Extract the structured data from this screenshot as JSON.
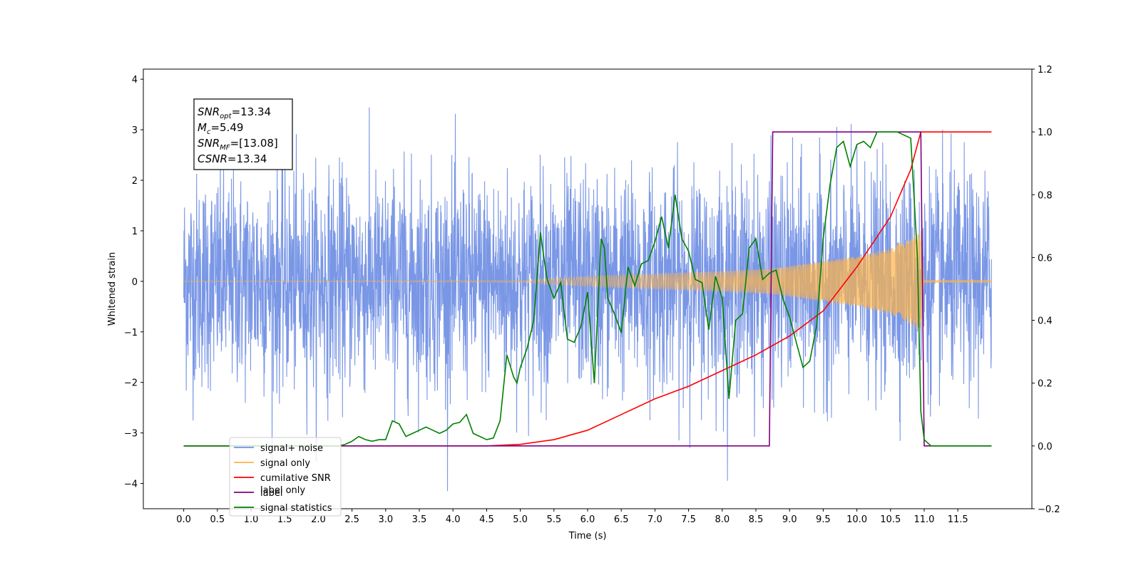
{
  "chart_data": {
    "type": "line",
    "xlabel": "Time (s)",
    "ylabel": "Whitened strain",
    "xlim": [
      -0.6,
      12.6
    ],
    "ylim": [
      -4.5,
      4.2
    ],
    "y2lim": [
      -0.2,
      1.2
    ],
    "x_ticks": [
      "0.0",
      "0.5",
      "1.0",
      "1.5",
      "2.0",
      "2.5",
      "3.0",
      "3.5",
      "4.0",
      "4.5",
      "5.0",
      "5.5",
      "6.0",
      "6.5",
      "7.0",
      "7.5",
      "8.0",
      "8.5",
      "9.0",
      "9.5",
      "10.0",
      "10.5",
      "11.0",
      "11.5"
    ],
    "y_ticks": [
      "4",
      "3",
      "2",
      "1",
      "0",
      "−1",
      "−2",
      "−3",
      "−4"
    ],
    "y2_ticks": [
      "1.2",
      "1.0",
      "0.8",
      "0.6",
      "0.4",
      "0.2",
      "0.0",
      "−0.2"
    ],
    "annotation_lines": [
      {
        "main": "SNR",
        "sub": "opt",
        "rest": "=13.34"
      },
      {
        "main": "M",
        "sub": "c",
        "rest": "=5.49"
      },
      {
        "main": "SNR",
        "sub": "MF",
        "rest": "=[13.08]"
      },
      {
        "main": "CSNR",
        "sub": "",
        "rest": "=13.34"
      }
    ],
    "legend": [
      {
        "label": "signal+ noise",
        "color": "#7391e5"
      },
      {
        "label": "signal only",
        "color": "#ffb347"
      },
      {
        "label": "cumilative SNR",
        "color": "#ff0000"
      },
      {
        "label": "label",
        "color": "#800080"
      },
      {
        "label": "signal statistics",
        "color": "#008000"
      }
    ],
    "legend_occluded_text": "label only",
    "legend_position": "lower-left",
    "series": [
      {
        "name": "signal+ noise",
        "axis": "left",
        "color": "#7391e5",
        "description": "white noise with std ~1, range about -4 to 4",
        "x_range": [
          0.0,
          12.0
        ]
      },
      {
        "name": "signal only",
        "axis": "left",
        "color": "#ffb347",
        "envelope_x": [
          0.0,
          5.0,
          6.0,
          7.0,
          8.0,
          8.7,
          9.0,
          9.5,
          10.0,
          10.5,
          10.8,
          10.95,
          11.0,
          12.0
        ],
        "envelope_amp": [
          0.0,
          0.02,
          0.1,
          0.15,
          0.2,
          0.25,
          0.3,
          0.4,
          0.5,
          0.65,
          0.85,
          1.0,
          0.02,
          0.02
        ]
      },
      {
        "name": "cumilative SNR",
        "axis": "right",
        "color": "#ff0000",
        "x": [
          0.0,
          4.5,
          5.0,
          5.5,
          6.0,
          6.5,
          7.0,
          7.5,
          8.0,
          8.5,
          9.0,
          9.5,
          10.0,
          10.5,
          10.8,
          10.95,
          11.0,
          12.0
        ],
        "y": [
          0.0,
          0.0,
          0.005,
          0.02,
          0.05,
          0.1,
          0.15,
          0.19,
          0.24,
          0.29,
          0.35,
          0.43,
          0.57,
          0.73,
          0.88,
          1.0,
          1.0,
          1.0
        ]
      },
      {
        "name": "label",
        "axis": "right",
        "color": "#800080",
        "x": [
          0.0,
          8.7,
          8.75,
          10.95,
          11.0,
          12.0
        ],
        "y": [
          0.0,
          0.0,
          1.0,
          1.0,
          0.0,
          0.0
        ]
      },
      {
        "name": "signal statistics",
        "axis": "right",
        "color": "#008000",
        "x": [
          0.0,
          2.3,
          2.4,
          2.5,
          2.6,
          2.7,
          2.8,
          2.9,
          3.0,
          3.1,
          3.2,
          3.3,
          3.4,
          3.5,
          3.6,
          3.7,
          3.8,
          3.9,
          4.0,
          4.1,
          4.2,
          4.3,
          4.4,
          4.5,
          4.6,
          4.7,
          4.8,
          4.9,
          4.95,
          5.0,
          5.1,
          5.2,
          5.3,
          5.35,
          5.4,
          5.5,
          5.6,
          5.7,
          5.8,
          5.9,
          6.0,
          6.1,
          6.2,
          6.25,
          6.3,
          6.4,
          6.5,
          6.6,
          6.7,
          6.8,
          6.9,
          7.0,
          7.1,
          7.2,
          7.3,
          7.4,
          7.5,
          7.6,
          7.7,
          7.8,
          7.9,
          8.0,
          8.1,
          8.2,
          8.3,
          8.4,
          8.5,
          8.6,
          8.7,
          8.8,
          8.9,
          9.0,
          9.1,
          9.2,
          9.3,
          9.4,
          9.5,
          9.6,
          9.7,
          9.8,
          9.9,
          10.0,
          10.1,
          10.2,
          10.3,
          10.4,
          10.5,
          10.6,
          10.7,
          10.8,
          10.9,
          10.95,
          11.0,
          11.05,
          11.1,
          11.2,
          11.5,
          12.0
        ],
        "y": [
          0.0,
          0.0,
          0.005,
          0.015,
          0.03,
          0.02,
          0.015,
          0.02,
          0.02,
          0.08,
          0.07,
          0.03,
          0.04,
          0.05,
          0.06,
          0.05,
          0.04,
          0.05,
          0.07,
          0.075,
          0.1,
          0.04,
          0.03,
          0.02,
          0.025,
          0.08,
          0.29,
          0.22,
          0.2,
          0.25,
          0.31,
          0.4,
          0.68,
          0.6,
          0.53,
          0.47,
          0.52,
          0.34,
          0.33,
          0.38,
          0.49,
          0.2,
          0.66,
          0.63,
          0.47,
          0.42,
          0.36,
          0.57,
          0.51,
          0.58,
          0.59,
          0.65,
          0.73,
          0.63,
          0.8,
          0.66,
          0.62,
          0.53,
          0.52,
          0.37,
          0.54,
          0.47,
          0.15,
          0.4,
          0.42,
          0.63,
          0.66,
          0.53,
          0.55,
          0.56,
          0.47,
          0.41,
          0.33,
          0.25,
          0.27,
          0.38,
          0.66,
          0.83,
          0.95,
          0.97,
          0.89,
          0.96,
          0.97,
          0.95,
          1.0,
          1.0,
          1.0,
          1.0,
          0.99,
          0.98,
          0.6,
          0.11,
          0.02,
          0.01,
          0.0,
          0.0,
          0.0,
          0.0
        ]
      }
    ]
  }
}
